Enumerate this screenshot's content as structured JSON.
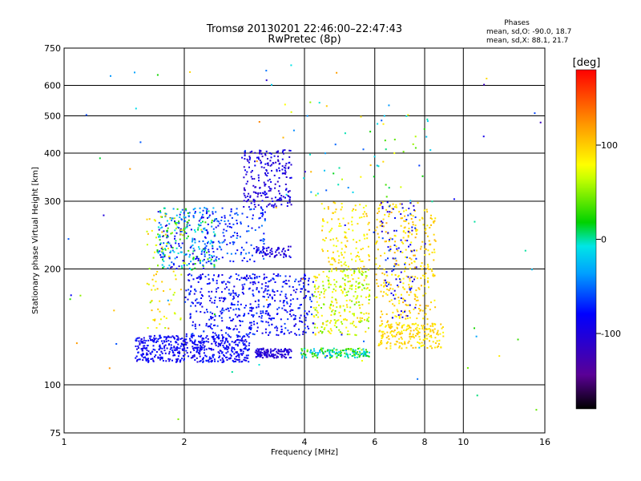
{
  "chart_data": {
    "type": "scatter",
    "title": "Tromsø 20130201 22:46:00–22:47:43",
    "subtitle": "RwPretec (8p)",
    "xlabel": "Frequency [MHz]",
    "ylabel": "Stationary phase Virtual Height [km]",
    "xscale": "log",
    "yscale": "log",
    "xlim": [
      1,
      16
    ],
    "ylim": [
      75,
      750
    ],
    "x_ticks": [
      1,
      2,
      4,
      6,
      8,
      10,
      16
    ],
    "y_ticks": [
      75,
      100,
      200,
      300,
      400,
      500,
      600,
      750
    ],
    "grid": true,
    "phase_stats": {
      "heading": "Phases",
      "line_o": "mean, sd,O: -90.0, 18.7",
      "line_x": "mean, sd,X:  88.1, 21.7"
    },
    "colorbar": {
      "label": "[deg]",
      "range": [
        -180,
        180
      ],
      "ticks": [
        100,
        0,
        -100
      ]
    },
    "clusters": [
      {
        "x": [
          1.5,
          2.9
        ],
        "y": [
          115,
          135
        ],
        "phase": [
          -100,
          -70
        ],
        "n": 520
      },
      {
        "x": [
          1.7,
          2.4
        ],
        "y": [
          200,
          290
        ],
        "phase": [
          -110,
          40
        ],
        "n": 300
      },
      {
        "x": [
          1.6,
          2.0
        ],
        "y": [
          140,
          280
        ],
        "phase": [
          50,
          110
        ],
        "n": 80
      },
      {
        "x": [
          2.0,
          4.2
        ],
        "y": [
          135,
          195
        ],
        "phase": [
          -100,
          -60
        ],
        "n": 520
      },
      {
        "x": [
          2.2,
          3.2
        ],
        "y": [
          210,
          290
        ],
        "phase": [
          -90,
          -40
        ],
        "n": 150
      },
      {
        "x": [
          2.8,
          3.7
        ],
        "y": [
          290,
          410
        ],
        "phase": [
          -115,
          -85
        ],
        "n": 220
      },
      {
        "x": [
          3.0,
          3.7
        ],
        "y": [
          118,
          125
        ],
        "phase": [
          -115,
          -90
        ],
        "n": 130
      },
      {
        "x": [
          3.0,
          3.7
        ],
        "y": [
          215,
          230
        ],
        "phase": [
          -110,
          -90
        ],
        "n": 60
      },
      {
        "x": [
          3.9,
          5.8
        ],
        "y": [
          118,
          125
        ],
        "phase": [
          -40,
          60
        ],
        "n": 160
      },
      {
        "x": [
          4.2,
          5.8
        ],
        "y": [
          135,
          200
        ],
        "phase": [
          40,
          100
        ],
        "n": 260
      },
      {
        "x": [
          4.4,
          5.8
        ],
        "y": [
          200,
          300
        ],
        "phase": [
          70,
          110
        ],
        "n": 130
      },
      {
        "x": [
          6.1,
          8.9
        ],
        "y": [
          125,
          145
        ],
        "phase": [
          80,
          110
        ],
        "n": 200
      },
      {
        "x": [
          6.0,
          8.5
        ],
        "y": [
          145,
          300
        ],
        "phase": [
          80,
          115
        ],
        "n": 320
      },
      {
        "x": [
          6.2,
          7.6
        ],
        "y": [
          150,
          300
        ],
        "phase": [
          -110,
          -60
        ],
        "n": 90
      },
      {
        "x": [
          3.5,
          8.5
        ],
        "y": [
          300,
          560
        ],
        "phase": [
          -60,
          120
        ],
        "n": 60
      },
      {
        "x": [
          1.0,
          16.0
        ],
        "y": [
          80,
          700
        ],
        "phase": [
          -120,
          130
        ],
        "n": 70
      }
    ]
  }
}
